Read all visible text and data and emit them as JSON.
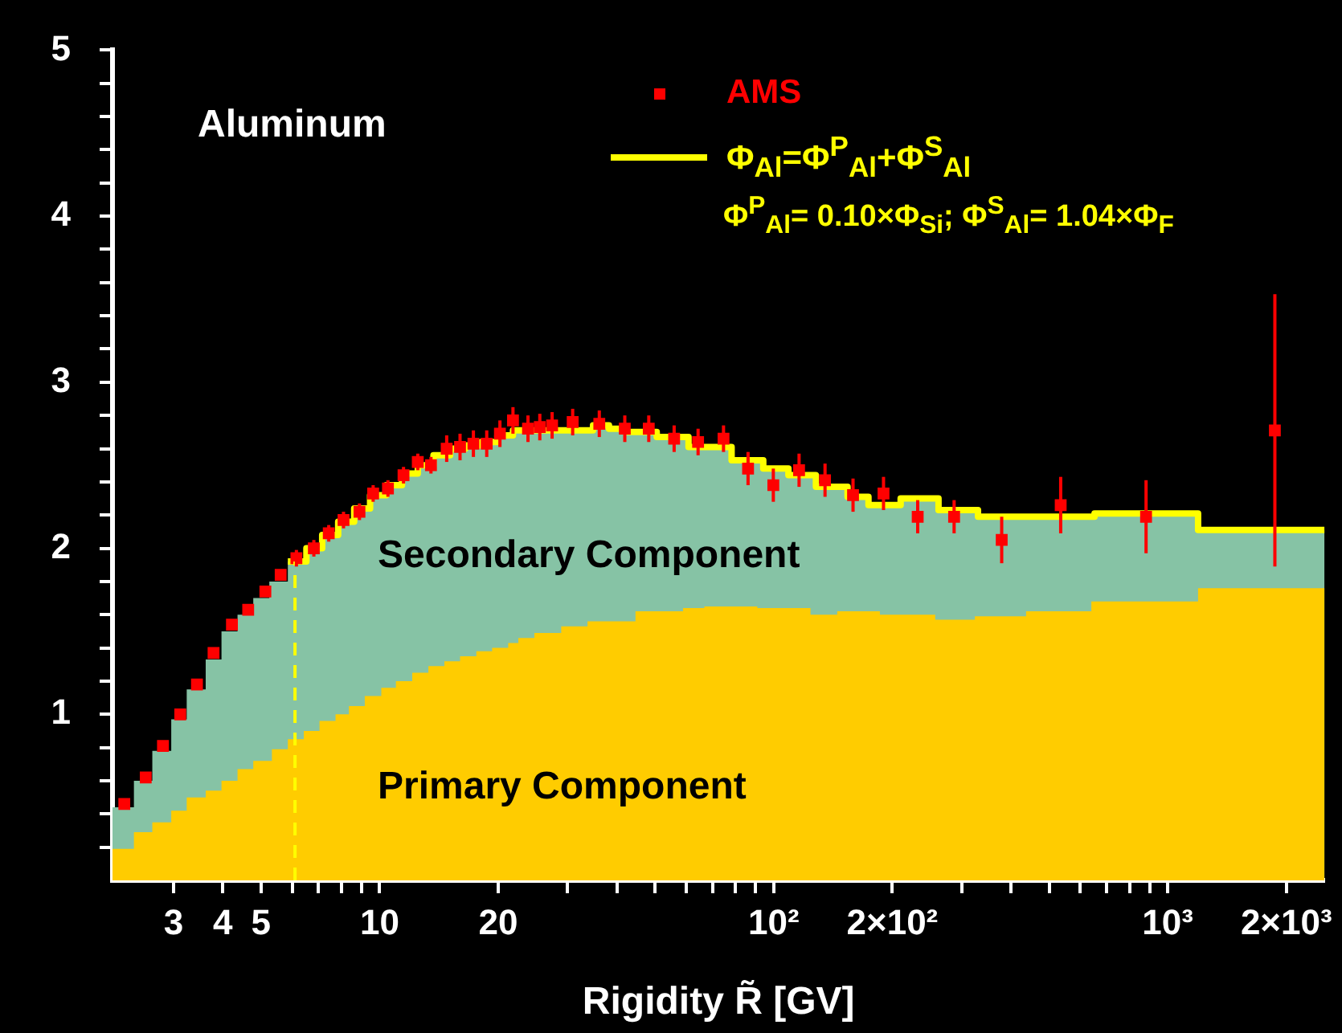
{
  "chart_data": {
    "type": "area",
    "xlabel": "Rigidity R̃ [GV]",
    "annotations": [
      "Aluminum",
      "Secondary Component",
      "Primary Component",
      "Φ$^{P}$$_{Al}$= 0.10×Φ$_{Si}$; Φ$^{S}$$_{Al}$= 1.04×Φ$_{F}$"
    ],
    "log": "x",
    "xlim": [
      2.1,
      2500
    ],
    "ylim": [
      0,
      5
    ],
    "xticks": [
      3,
      4,
      5,
      {
        "value": 6,
        "label": null
      },
      {
        "value": 7,
        "label": null
      },
      {
        "value": 8,
        "label": null
      },
      {
        "value": 9,
        "label": null
      },
      10,
      20,
      {
        "value": 30,
        "label": null
      },
      {
        "value": 40,
        "label": null
      },
      {
        "value": 50,
        "label": null
      },
      {
        "value": 60,
        "label": null
      },
      {
        "value": 70,
        "label": null
      },
      {
        "value": 80,
        "label": null
      },
      {
        "value": 90,
        "label": null
      },
      {
        "value": 100,
        "label": "10²"
      },
      {
        "value": 200,
        "label": "2×10²"
      },
      {
        "value": 300,
        "label": null
      },
      {
        "value": 400,
        "label": null
      },
      {
        "value": 500,
        "label": null
      },
      {
        "value": 600,
        "label": null
      },
      {
        "value": 700,
        "label": null
      },
      {
        "value": 800,
        "label": null
      },
      {
        "value": 900,
        "label": null
      },
      {
        "value": 1000,
        "label": "10³"
      },
      {
        "value": 2000,
        "label": "2×10³"
      }
    ],
    "yticks": [
      {
        "value": 0.2,
        "label": null
      },
      {
        "value": 0.4,
        "label": null
      },
      {
        "value": 0.6,
        "label": null
      },
      {
        "value": 0.8,
        "label": null
      },
      1,
      {
        "value": 1.2,
        "label": null
      },
      {
        "value": 1.4,
        "label": null
      },
      {
        "value": 1.6,
        "label": null
      },
      {
        "value": 1.8,
        "label": null
      },
      2,
      {
        "value": 2.2,
        "label": null
      },
      {
        "value": 2.4,
        "label": null
      },
      {
        "value": 2.6,
        "label": null
      },
      {
        "value": 2.8,
        "label": null
      },
      3,
      {
        "value": 3.2,
        "label": null
      },
      {
        "value": 3.4,
        "label": null
      },
      {
        "value": 3.6,
        "label": null
      },
      {
        "value": 3.8,
        "label": null
      },
      4,
      {
        "value": 4.2,
        "label": null
      },
      {
        "value": 4.4,
        "label": null
      },
      {
        "value": 4.6,
        "label": null
      },
      {
        "value": 4.8,
        "label": null
      },
      5
    ],
    "grid": false,
    "legend": "top right",
    "ref_lines": [
      {
        "axis": "x",
        "value": 6.1,
        "color": "#ffff00",
        "line_style": "dashed"
      }
    ],
    "series": [
      {
        "color": "#86c3a5",
        "x": [
          2.1,
          2.38,
          2.65,
          2.96,
          3.24,
          3.62,
          3.97,
          4.36,
          4.78,
          5.25,
          5.85,
          6.52,
          7.15,
          7.85,
          8.62,
          9.46,
          10.4,
          11.4,
          12.5,
          13.7,
          15.1,
          16.5,
          18.1,
          19.9,
          21.8,
          34.8,
          38.2,
          41.9,
          50.5,
          60.8,
          78.2,
          94.1,
          109,
          128,
          154,
          174,
          210,
          262,
          330,
          652,
          1194,
          2500
        ],
        "values": [
          0.44,
          0.6,
          0.78,
          0.97,
          1.15,
          1.33,
          1.5,
          1.6,
          1.7,
          1.8,
          1.92,
          2.0,
          2.08,
          2.16,
          2.24,
          2.32,
          2.38,
          2.45,
          2.5,
          2.56,
          2.6,
          2.62,
          2.64,
          2.68,
          2.71,
          2.74,
          2.72,
          2.7,
          2.67,
          2.61,
          2.53,
          2.48,
          2.44,
          2.37,
          2.31,
          2.26,
          2.3,
          2.23,
          2.19,
          2.21,
          2.11,
          2.11
        ]
      },
      {
        "color": "#ffcc00",
        "x": [
          2.1,
          2.38,
          2.65,
          2.96,
          3.24,
          3.62,
          3.97,
          4.36,
          4.78,
          5.33,
          5.85,
          6.42,
          7.04,
          7.73,
          8.36,
          9.17,
          10.1,
          11.0,
          12.1,
          13.3,
          14.6,
          16.0,
          17.6,
          19.3,
          21.2,
          22.5,
          24.7,
          28.9,
          33.7,
          44.6,
          58.9,
          66.7,
          90.9,
          124,
          145,
          186,
          257,
          324,
          437,
          640,
          1194,
          2500
        ],
        "values": [
          0.19,
          0.29,
          0.35,
          0.42,
          0.5,
          0.54,
          0.6,
          0.67,
          0.72,
          0.79,
          0.85,
          0.9,
          0.96,
          1.0,
          1.05,
          1.11,
          1.16,
          1.2,
          1.25,
          1.29,
          1.32,
          1.35,
          1.38,
          1.4,
          1.43,
          1.46,
          1.49,
          1.53,
          1.56,
          1.62,
          1.64,
          1.65,
          1.64,
          1.6,
          1.62,
          1.6,
          1.57,
          1.59,
          1.62,
          1.68,
          1.76,
          1.76
        ]
      },
      {
        "type": "step",
        "name": "Φ$_{Al}$=Φ$^{P}$$_{Al}$+Φ$^{S}$$_{Al}$",
        "color": "#ffff00",
        "x": [
          5.85,
          6.52,
          7.15,
          7.85,
          8.62,
          9.46,
          10.4,
          11.4,
          12.5,
          13.7,
          15.1,
          16.5,
          18.1,
          19.9,
          21.8,
          34.8,
          38.2,
          41.9,
          50.5,
          60.8,
          78.2,
          94.1,
          109,
          128,
          154,
          174,
          210,
          262,
          330,
          652,
          1194,
          2500
        ],
        "values": [
          1.92,
          2.0,
          2.08,
          2.16,
          2.24,
          2.32,
          2.38,
          2.45,
          2.5,
          2.56,
          2.6,
          2.62,
          2.64,
          2.68,
          2.71,
          2.74,
          2.72,
          2.7,
          2.67,
          2.61,
          2.53,
          2.48,
          2.44,
          2.37,
          2.31,
          2.26,
          2.3,
          2.23,
          2.19,
          2.21,
          2.11,
          2.11
        ]
      },
      {
        "type": "scatter",
        "name": "AMS",
        "color": "#ff0000",
        "marker": "square",
        "x": [
          2.25,
          2.55,
          2.82,
          3.12,
          3.44,
          3.79,
          4.22,
          4.64,
          5.13,
          5.61,
          6.15,
          6.81,
          7.43,
          8.1,
          8.89,
          9.63,
          10.5,
          11.5,
          12.5,
          13.5,
          14.8,
          16.0,
          17.3,
          18.7,
          20.2,
          21.8,
          23.8,
          25.5,
          27.4,
          30.9,
          36.1,
          41.9,
          48.2,
          55.9,
          64.3,
          74.6,
          86.1,
          99.8,
          116,
          135,
          159,
          190,
          232,
          287,
          379,
          535,
          881,
          1870
        ],
        "values": [
          0.46,
          0.62,
          0.81,
          1.0,
          1.18,
          1.37,
          1.54,
          1.63,
          1.74,
          1.84,
          1.94,
          2.0,
          2.09,
          2.17,
          2.22,
          2.33,
          2.36,
          2.44,
          2.52,
          2.5,
          2.6,
          2.61,
          2.63,
          2.63,
          2.69,
          2.77,
          2.72,
          2.73,
          2.74,
          2.76,
          2.75,
          2.72,
          2.72,
          2.66,
          2.64,
          2.66,
          2.48,
          2.38,
          2.47,
          2.41,
          2.32,
          2.33,
          2.19,
          2.19,
          2.05,
          2.26,
          2.19,
          2.71
        ],
        "errors": [
          0.03,
          0.03,
          0.03,
          0.03,
          0.03,
          0.03,
          0.03,
          0.03,
          0.03,
          0.03,
          0.05,
          0.05,
          0.05,
          0.05,
          0.05,
          0.05,
          0.05,
          0.05,
          0.05,
          0.05,
          0.08,
          0.08,
          0.08,
          0.08,
          0.08,
          0.08,
          0.08,
          0.08,
          0.08,
          0.08,
          0.08,
          0.08,
          0.08,
          0.08,
          0.08,
          0.08,
          0.1,
          0.1,
          0.1,
          0.1,
          0.1,
          0.1,
          0.1,
          0.1,
          0.14,
          0.17,
          0.22,
          0.82
        ]
      }
    ]
  }
}
